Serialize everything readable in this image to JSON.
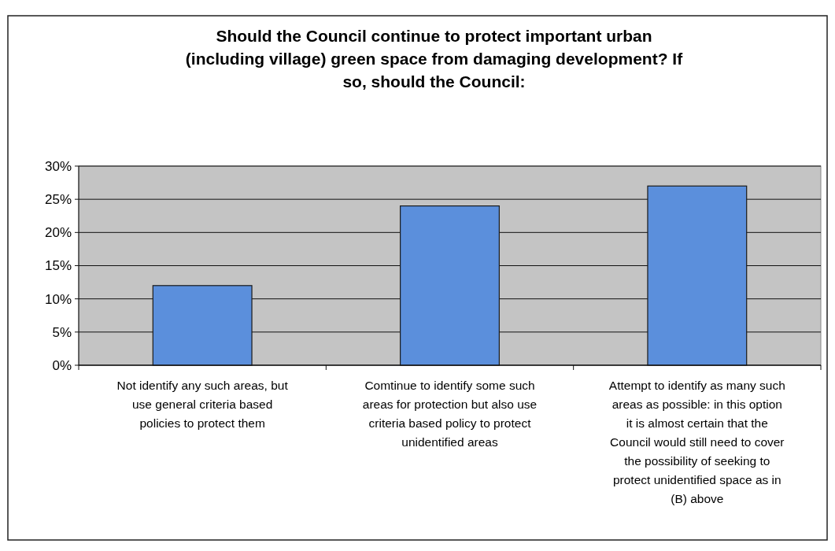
{
  "chart_data": {
    "type": "bar",
    "title": "Should the Council continue to protect important urban (including village) green space from damaging development? If so, should the Council:",
    "categories": [
      "Not identify any such areas, but use general criteria based policies to protect them",
      "Comtinue to identify some such areas for protection but also use criteria based policy to protect unidentified areas",
      "Attempt to identify as many such areas as possible: in this option it is almost certain that the Council would still need to cover the possibility of seeking to protect unidentified space as in (B) above"
    ],
    "values": [
      12,
      24,
      27
    ],
    "color": "#5b8fdc",
    "ylim": [
      0,
      30
    ],
    "yticks": [
      {
        "value": 0,
        "label": "0%"
      },
      {
        "value": 5,
        "label": "5%"
      },
      {
        "value": 10,
        "label": "10%"
      },
      {
        "value": 15,
        "label": "15%"
      },
      {
        "value": 20,
        "label": "20%"
      },
      {
        "value": 25,
        "label": "25%"
      },
      {
        "value": 30,
        "label": "30%"
      }
    ],
    "grid": "y"
  }
}
